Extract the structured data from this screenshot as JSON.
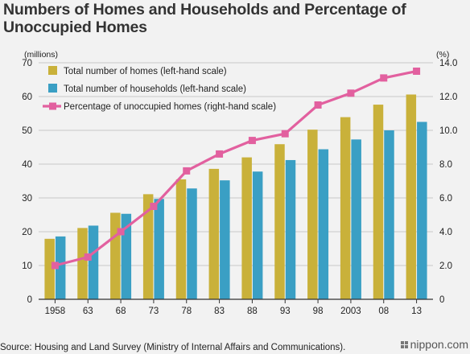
{
  "title_line1": "Numbers of Homes and Households and Percentage of",
  "title_line2": "Unoccupied Homes",
  "source": "Source: Housing and Land Survey (Ministry of Internal Affairs and Communications).",
  "logo_text": "nippon.com",
  "logo_icon": "nippon-logo-icon",
  "colors": {
    "homes": "#c9b13a",
    "households": "#3a9fc4",
    "percentage": "#e2609f",
    "grid": "#c8c8c8",
    "axis": "#333333"
  },
  "chart_data": {
    "type": "bar",
    "categories": [
      "1958",
      "63",
      "68",
      "73",
      "78",
      "83",
      "88",
      "93",
      "98",
      "2003",
      "08",
      "13"
    ],
    "series": [
      {
        "name": "Total number of homes (left-hand scale)",
        "type": "bar",
        "axis": "left",
        "values": [
          17.9,
          21.1,
          25.6,
          31.1,
          35.5,
          38.6,
          42.0,
          45.9,
          50.2,
          53.9,
          57.6,
          60.6
        ]
      },
      {
        "name": "Total number of households (left-hand scale)",
        "type": "bar",
        "axis": "left",
        "values": [
          18.6,
          21.8,
          25.3,
          29.7,
          32.8,
          35.2,
          37.8,
          41.2,
          44.4,
          47.3,
          50.0,
          52.5
        ]
      },
      {
        "name": "Percentage of unoccupied homes (right-hand scale)",
        "type": "line",
        "axis": "right",
        "values": [
          2.0,
          2.5,
          4.0,
          5.5,
          7.6,
          8.6,
          9.4,
          9.8,
          11.5,
          12.2,
          13.1,
          13.5
        ]
      }
    ],
    "left_axis": {
      "label": "(millions)",
      "ylim": [
        0,
        70
      ],
      "ticks": [
        "0",
        "10",
        "20",
        "30",
        "40",
        "50",
        "60",
        "70"
      ]
    },
    "right_axis": {
      "label": "(%)",
      "ylim": [
        0,
        14
      ],
      "ticks": [
        "0",
        "2.0",
        "4.0",
        "6.0",
        "8.0",
        "10.0",
        "12.0",
        "14.0"
      ]
    },
    "grid": true,
    "legend_position": "top-left"
  }
}
